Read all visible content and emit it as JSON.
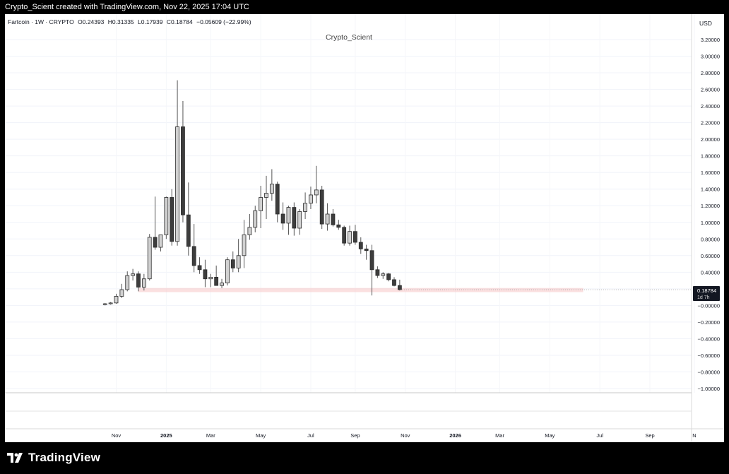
{
  "header": {
    "attribution": "Crypto_Scient created with TradingView.com, Nov 22, 2025 17:04 UTC"
  },
  "legend": {
    "symbol": "Fartcoin · 1W · CRYPTO",
    "open": "O0.24393",
    "high": "H0.31335",
    "low": "L0.17939",
    "close": "C0.18784",
    "change": "−0.05609 (−22.99%)"
  },
  "watermark": "Crypto_Scient",
  "currency": "USD",
  "price_tag": {
    "value": "0.18784",
    "countdown": "1d 7h"
  },
  "footer": {
    "brand": "TradingView"
  },
  "colors": {
    "up": "#d1d1d1",
    "down": "#3d3d3d",
    "zone": "#f7c7c7",
    "price_tag": "#131722"
  },
  "chart_data": {
    "type": "candlestick",
    "title": "",
    "interval": "1W",
    "y_ticks": [
      "3.20000",
      "3.00000",
      "2.80000",
      "2.60000",
      "2.40000",
      "2.20000",
      "2.00000",
      "1.80000",
      "1.60000",
      "1.40000",
      "1.20000",
      "1.00000",
      "0.80000",
      "0.60000",
      "0.40000",
      "0.20000",
      "−0.00000",
      "−0.20000",
      "−0.40000",
      "−0.60000",
      "−0.80000",
      "−1.00000"
    ],
    "y_tick_values": [
      3.2,
      3.0,
      2.8,
      2.6,
      2.4,
      2.2,
      2.0,
      1.8,
      1.6,
      1.4,
      1.2,
      1.0,
      0.8,
      0.6,
      0.4,
      0.2,
      0.0,
      -0.2,
      -0.4,
      -0.6,
      -0.8,
      -1.0
    ],
    "ylim": [
      -1.0,
      3.2
    ],
    "x_ticks": [
      {
        "label": "Nov",
        "week": 0
      },
      {
        "label": "2025",
        "week": 9
      },
      {
        "label": "Mar",
        "week": 17
      },
      {
        "label": "May",
        "week": 26
      },
      {
        "label": "Jul",
        "week": 35
      },
      {
        "label": "Sep",
        "week": 43
      },
      {
        "label": "Nov",
        "week": 52
      },
      {
        "label": "2026",
        "week": 61
      },
      {
        "label": "Mar",
        "week": 69
      },
      {
        "label": "May",
        "week": 78
      },
      {
        "label": "Jul",
        "week": 87
      },
      {
        "label": "Sep",
        "week": 96
      },
      {
        "label": "N",
        "week": 104
      }
    ],
    "support_zone": {
      "low": 0.16,
      "high": 0.21,
      "start_week": 4,
      "end_week": 84
    },
    "candles": [
      {
        "week": -2,
        "o": 0.01,
        "h": 0.03,
        "l": 0.0,
        "c": 0.02
      },
      {
        "week": -1,
        "o": 0.02,
        "h": 0.04,
        "l": 0.01,
        "c": 0.03
      },
      {
        "week": 0,
        "o": 0.03,
        "h": 0.14,
        "l": 0.02,
        "c": 0.11
      },
      {
        "week": 1,
        "o": 0.11,
        "h": 0.26,
        "l": 0.09,
        "c": 0.19
      },
      {
        "week": 2,
        "o": 0.19,
        "h": 0.41,
        "l": 0.17,
        "c": 0.36
      },
      {
        "week": 3,
        "o": 0.36,
        "h": 0.44,
        "l": 0.3,
        "c": 0.38
      },
      {
        "week": 4,
        "o": 0.38,
        "h": 0.41,
        "l": 0.17,
        "c": 0.22
      },
      {
        "week": 5,
        "o": 0.22,
        "h": 0.38,
        "l": 0.18,
        "c": 0.32
      },
      {
        "week": 6,
        "o": 0.32,
        "h": 0.86,
        "l": 0.3,
        "c": 0.82
      },
      {
        "week": 7,
        "o": 0.82,
        "h": 1.31,
        "l": 0.67,
        "c": 0.7
      },
      {
        "week": 8,
        "o": 0.7,
        "h": 0.85,
        "l": 0.65,
        "c": 0.85
      },
      {
        "week": 9,
        "o": 0.85,
        "h": 1.31,
        "l": 0.8,
        "c": 1.3
      },
      {
        "week": 10,
        "o": 1.3,
        "h": 1.4,
        "l": 0.72,
        "c": 0.77
      },
      {
        "week": 11,
        "o": 0.77,
        "h": 2.71,
        "l": 0.72,
        "c": 2.15
      },
      {
        "week": 12,
        "o": 2.15,
        "h": 2.46,
        "l": 1.0,
        "c": 1.09
      },
      {
        "week": 13,
        "o": 1.09,
        "h": 1.48,
        "l": 0.6,
        "c": 0.71
      },
      {
        "week": 14,
        "o": 0.71,
        "h": 0.98,
        "l": 0.4,
        "c": 0.48
      },
      {
        "week": 15,
        "o": 0.48,
        "h": 0.58,
        "l": 0.38,
        "c": 0.43
      },
      {
        "week": 16,
        "o": 0.43,
        "h": 0.55,
        "l": 0.22,
        "c": 0.32
      },
      {
        "week": 17,
        "o": 0.32,
        "h": 0.38,
        "l": 0.22,
        "c": 0.34
      },
      {
        "week": 18,
        "o": 0.34,
        "h": 0.48,
        "l": 0.24,
        "c": 0.24
      },
      {
        "week": 19,
        "o": 0.24,
        "h": 0.32,
        "l": 0.21,
        "c": 0.27
      },
      {
        "week": 20,
        "o": 0.27,
        "h": 0.58,
        "l": 0.24,
        "c": 0.55
      },
      {
        "week": 21,
        "o": 0.55,
        "h": 0.65,
        "l": 0.4,
        "c": 0.45
      },
      {
        "week": 22,
        "o": 0.45,
        "h": 0.8,
        "l": 0.4,
        "c": 0.6
      },
      {
        "week": 23,
        "o": 0.6,
        "h": 1.03,
        "l": 0.45,
        "c": 0.85
      },
      {
        "week": 24,
        "o": 0.85,
        "h": 1.1,
        "l": 0.79,
        "c": 0.94
      },
      {
        "week": 25,
        "o": 0.94,
        "h": 1.2,
        "l": 0.88,
        "c": 1.14
      },
      {
        "week": 26,
        "o": 1.14,
        "h": 1.44,
        "l": 0.93,
        "c": 1.3
      },
      {
        "week": 27,
        "o": 1.3,
        "h": 1.56,
        "l": 1.04,
        "c": 1.35
      },
      {
        "week": 28,
        "o": 1.35,
        "h": 1.64,
        "l": 1.26,
        "c": 1.46
      },
      {
        "week": 29,
        "o": 1.46,
        "h": 1.49,
        "l": 1.0,
        "c": 1.1
      },
      {
        "week": 30,
        "o": 1.1,
        "h": 1.24,
        "l": 0.91,
        "c": 0.99
      },
      {
        "week": 31,
        "o": 0.99,
        "h": 1.2,
        "l": 0.85,
        "c": 1.18
      },
      {
        "week": 32,
        "o": 1.18,
        "h": 1.24,
        "l": 0.84,
        "c": 0.93
      },
      {
        "week": 33,
        "o": 0.93,
        "h": 1.16,
        "l": 0.85,
        "c": 1.13
      },
      {
        "week": 34,
        "o": 1.13,
        "h": 1.36,
        "l": 1.04,
        "c": 1.23
      },
      {
        "week": 35,
        "o": 1.23,
        "h": 1.43,
        "l": 1.16,
        "c": 1.33
      },
      {
        "week": 36,
        "o": 1.33,
        "h": 1.68,
        "l": 1.23,
        "c": 1.39
      },
      {
        "week": 37,
        "o": 1.39,
        "h": 1.44,
        "l": 0.92,
        "c": 0.98
      },
      {
        "week": 38,
        "o": 0.98,
        "h": 1.23,
        "l": 0.9,
        "c": 1.1
      },
      {
        "week": 39,
        "o": 1.1,
        "h": 1.16,
        "l": 0.95,
        "c": 0.97
      },
      {
        "week": 40,
        "o": 0.97,
        "h": 1.03,
        "l": 0.91,
        "c": 0.94
      },
      {
        "week": 41,
        "o": 0.94,
        "h": 0.96,
        "l": 0.72,
        "c": 0.75
      },
      {
        "week": 42,
        "o": 0.75,
        "h": 0.96,
        "l": 0.72,
        "c": 0.89
      },
      {
        "week": 43,
        "o": 0.89,
        "h": 0.97,
        "l": 0.73,
        "c": 0.76
      },
      {
        "week": 44,
        "o": 0.76,
        "h": 0.82,
        "l": 0.62,
        "c": 0.68
      },
      {
        "week": 45,
        "o": 0.68,
        "h": 0.73,
        "l": 0.55,
        "c": 0.66
      },
      {
        "week": 46,
        "o": 0.66,
        "h": 0.73,
        "l": 0.12,
        "c": 0.43
      },
      {
        "week": 47,
        "o": 0.43,
        "h": 0.47,
        "l": 0.33,
        "c": 0.36
      },
      {
        "week": 48,
        "o": 0.36,
        "h": 0.4,
        "l": 0.32,
        "c": 0.38
      },
      {
        "week": 49,
        "o": 0.38,
        "h": 0.39,
        "l": 0.29,
        "c": 0.31
      },
      {
        "week": 50,
        "o": 0.31,
        "h": 0.34,
        "l": 0.23,
        "c": 0.24
      },
      {
        "week": 51,
        "o": 0.24,
        "h": 0.31,
        "l": 0.18,
        "c": 0.19
      }
    ]
  }
}
